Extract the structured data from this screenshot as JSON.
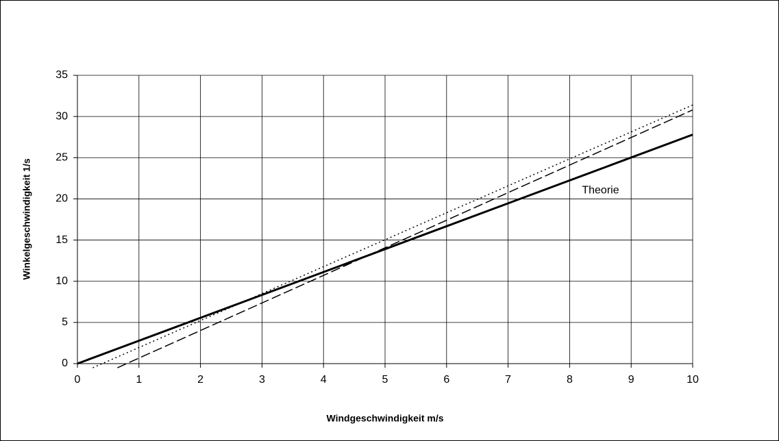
{
  "chart_data": {
    "type": "line",
    "x_label": "Windgeschwindigkeit m/s",
    "y_label": "Winkelgeschwindigkeit 1/s",
    "annotation": "Theorie",
    "xlim": [
      0,
      10
    ],
    "xticks": [
      0,
      1,
      2,
      3,
      4,
      5,
      6,
      7,
      8,
      9,
      10
    ],
    "ylim": [
      0,
      35
    ],
    "yticks": [
      0,
      5,
      10,
      15,
      20,
      25,
      30,
      35
    ],
    "grid": true,
    "series": [
      {
        "name": "Theorie",
        "color": "#000000",
        "style": "solid",
        "x": [
          0,
          10
        ],
        "values": [
          0,
          27.8
        ]
      },
      {
        "color": "#000000",
        "style": "dashed",
        "x": [
          0.65,
          10
        ],
        "values": [
          -0.5,
          30.8
        ]
      },
      {
        "color": "#000000",
        "style": "dotted",
        "x": [
          0.25,
          10
        ],
        "values": [
          -0.5,
          31.4
        ]
      }
    ]
  }
}
